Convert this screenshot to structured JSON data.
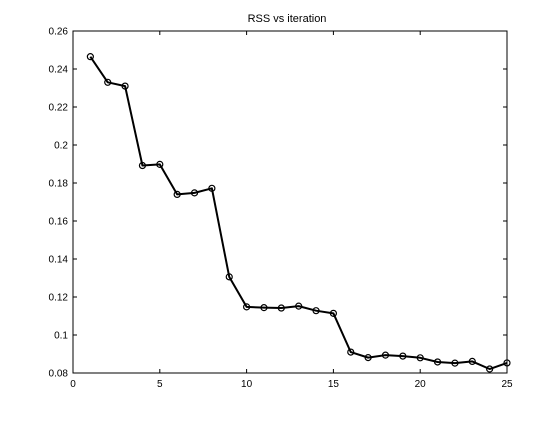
{
  "chart_data": {
    "type": "line",
    "title": "RSS vs iteration",
    "xlabel": "",
    "ylabel": "",
    "xlim": [
      0,
      25
    ],
    "ylim": [
      0.08,
      0.26
    ],
    "xticks": [
      0,
      5,
      10,
      15,
      20,
      25
    ],
    "xtick_labels": [
      "0",
      "5",
      "10",
      "15",
      "20",
      "25"
    ],
    "yticks": [
      0.08,
      0.1,
      0.12,
      0.14,
      0.16,
      0.18,
      0.2,
      0.22,
      0.24,
      0.26
    ],
    "ytick_labels": [
      "0.08",
      "0.1",
      "0.12",
      "0.14",
      "0.16",
      "0.18",
      "0.2",
      "0.22",
      "0.24",
      "0.26"
    ],
    "grid": false,
    "legend": "none",
    "series": [
      {
        "color": "#000000",
        "marker": "circle",
        "x": [
          1,
          2,
          3,
          4,
          5,
          6,
          7,
          8,
          9,
          10,
          11,
          12,
          13,
          14,
          15,
          16,
          17,
          18,
          19,
          20,
          21,
          22,
          23,
          24,
          25
        ],
        "y": [
          0.2465,
          0.233,
          0.231,
          0.1892,
          0.1898,
          0.174,
          0.1748,
          0.1772,
          0.1306,
          0.1148,
          0.1144,
          0.1142,
          0.1152,
          0.1128,
          0.1114,
          0.091,
          0.0881,
          0.0894,
          0.0889,
          0.088,
          0.0858,
          0.0852,
          0.0861,
          0.0821,
          0.0853
        ]
      }
    ]
  }
}
